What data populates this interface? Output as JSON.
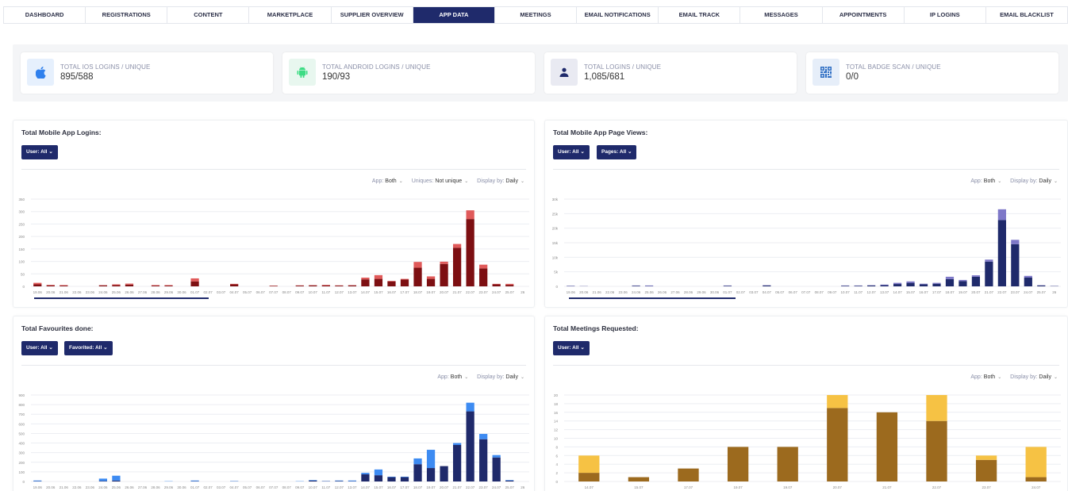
{
  "nav": [
    {
      "label": "DASHBOARD",
      "active": false
    },
    {
      "label": "REGISTRATIONS",
      "active": false
    },
    {
      "label": "CONTENT",
      "active": false
    },
    {
      "label": "MARKETPLACE",
      "active": false
    },
    {
      "label": "SUPPLIER OVERVIEW",
      "active": false
    },
    {
      "label": "APP DATA",
      "active": true
    },
    {
      "label": "MEETINGS",
      "active": false
    },
    {
      "label": "EMAIL NOTIFICATIONS",
      "active": false
    },
    {
      "label": "EMAIL TRACK",
      "active": false
    },
    {
      "label": "MESSAGES",
      "active": false
    },
    {
      "label": "APPOINTMENTS",
      "active": false
    },
    {
      "label": "IP LOGINS",
      "active": false
    },
    {
      "label": "EMAIL BLACKLIST",
      "active": false
    }
  ],
  "stats": [
    {
      "label": "TOTAL IOS LOGINS / UNIQUE",
      "value": "895/588",
      "icon": "apple-icon",
      "color": "#2f80ed",
      "bg": "#e6f0fd"
    },
    {
      "label": "TOTAL ANDROID LOGINS / UNIQUE",
      "value": "190/93",
      "icon": "android-icon",
      "color": "#3ddc84",
      "bg": "#e8f7ef"
    },
    {
      "label": "TOTAL LOGINS / UNIQUE",
      "value": "1,085/681",
      "icon": "user-icon",
      "color": "#1f2a6b",
      "bg": "#e9eaf2"
    },
    {
      "label": "TOTAL BADGE SCAN / UNIQUE",
      "value": "0/0",
      "icon": "qr-code-icon",
      "color": "#2f6fc4",
      "bg": "#e6eef9"
    }
  ],
  "panels": {
    "logins": {
      "title": "Total Mobile App Logins:",
      "user_btn": "User: All",
      "app_label": "App:",
      "app_value": "Both",
      "uniques_label": "Uniques:",
      "uniques_value": "Not unique",
      "display_label": "Display by:",
      "display_value": "Daily"
    },
    "pageviews": {
      "title": "Total Mobile App Page Views:",
      "user_btn": "User: All",
      "pages_btn": "Pages: All",
      "app_label": "App:",
      "app_value": "Both",
      "display_label": "Display by:",
      "display_value": "Daily"
    },
    "favourites": {
      "title": "Total Favourites done:",
      "user_btn": "User: All",
      "favorited_btn": "Favorited: All",
      "app_label": "App:",
      "app_value": "Both",
      "display_label": "Display by:",
      "display_value": "Daily"
    },
    "meetings": {
      "title": "Total Meetings Requested:",
      "user_btn": "User: All",
      "app_label": "App:",
      "app_value": "Both",
      "display_label": "Display by:",
      "display_value": "Daily"
    }
  },
  "chart_data": [
    {
      "id": "logins",
      "type": "bar",
      "stacked": true,
      "ylim": [
        0,
        350
      ],
      "yticks": [
        0,
        50,
        100,
        150,
        200,
        250,
        300,
        350
      ],
      "categories": [
        "19.06",
        "20.06",
        "21.06",
        "22.06",
        "23.06",
        "24.06",
        "25.06",
        "26.06",
        "27.06",
        "28.06",
        "29.06",
        "30.06",
        "01.07",
        "02.07",
        "03.07",
        "04.07",
        "05.07",
        "06.07",
        "07.07",
        "08.07",
        "09.07",
        "10.07",
        "11.07",
        "12.07",
        "13.07",
        "14.07",
        "15.07",
        "16.07",
        "17.07",
        "18.07",
        "19.07",
        "20.07",
        "21.07",
        "22.07",
        "23.07",
        "24.07",
        "25.07",
        "26"
      ],
      "series": [
        {
          "values": [
            8,
            4,
            3,
            0,
            0,
            4,
            5,
            7,
            0,
            3,
            3,
            0,
            20,
            0,
            0,
            8,
            0,
            0,
            2,
            0,
            3,
            4,
            4,
            3,
            4,
            28,
            30,
            20,
            27,
            75,
            30,
            90,
            155,
            270,
            72,
            8,
            6,
            0
          ],
          "color": "#7d0f12"
        },
        {
          "values": [
            6,
            2,
            2,
            0,
            0,
            1,
            3,
            4,
            0,
            2,
            2,
            0,
            12,
            0,
            0,
            2,
            0,
            0,
            1,
            0,
            1,
            1,
            2,
            1,
            1,
            7,
            15,
            2,
            3,
            23,
            10,
            9,
            15,
            35,
            15,
            2,
            4,
            0
          ],
          "color": "#e05a5a"
        }
      ],
      "grid": true,
      "legend": "none"
    },
    {
      "id": "pageviews",
      "type": "bar",
      "stacked": true,
      "ylim": [
        0,
        30000
      ],
      "yticks": [
        "0",
        "5k",
        "10k",
        "15k",
        "20k",
        "25k",
        "30k"
      ],
      "categories": [
        "19.06",
        "20.06",
        "21.06",
        "22.06",
        "23.06",
        "24.06",
        "25.06",
        "26.06",
        "27.06",
        "28.06",
        "29.06",
        "30.06",
        "01.07",
        "02.07",
        "03.07",
        "04.07",
        "05.07",
        "06.07",
        "07.07",
        "08.07",
        "09.07",
        "10.07",
        "11.07",
        "12.07",
        "13.07",
        "14.07",
        "15.07",
        "16.07",
        "17.07",
        "18.07",
        "19.07",
        "20.07",
        "21.07",
        "22.07",
        "23.07",
        "24.07",
        "25.07",
        "26"
      ],
      "series": [
        {
          "values": [
            100,
            50,
            0,
            0,
            0,
            200,
            100,
            0,
            0,
            0,
            0,
            0,
            200,
            0,
            0,
            300,
            0,
            0,
            0,
            0,
            0,
            200,
            200,
            300,
            400,
            800,
            1200,
            700,
            900,
            2500,
            1800,
            3300,
            8500,
            22800,
            14500,
            3000,
            300,
            100
          ],
          "color": "#1f2a6b"
        },
        {
          "values": [
            100,
            50,
            0,
            0,
            0,
            100,
            200,
            0,
            0,
            0,
            0,
            0,
            100,
            0,
            0,
            100,
            0,
            0,
            0,
            0,
            0,
            100,
            100,
            100,
            200,
            400,
            500,
            200,
            300,
            800,
            400,
            500,
            700,
            3700,
            1500,
            600,
            100,
            50
          ],
          "color": "#7e78c8"
        }
      ],
      "grid": true,
      "legend": "none"
    },
    {
      "id": "favourites",
      "type": "bar",
      "stacked": true,
      "ylim": [
        0,
        900
      ],
      "yticks": [
        0,
        100,
        200,
        300,
        400,
        500,
        600,
        700,
        800,
        900
      ],
      "categories": [
        "19.06",
        "20.06",
        "21.06",
        "22.06",
        "23.06",
        "24.06",
        "25.06",
        "26.06",
        "27.06",
        "28.06",
        "29.06",
        "30.06",
        "01.07",
        "02.07",
        "03.07",
        "04.07",
        "05.07",
        "06.07",
        "07.07",
        "08.07",
        "09.07",
        "10.07",
        "11.07",
        "12.07",
        "13.07",
        "14.07",
        "15.07",
        "16.07",
        "17.07",
        "18.07",
        "19.07",
        "20.07",
        "21.07",
        "22.07",
        "23.07",
        "24.07",
        "25.07",
        "26"
      ],
      "series": [
        {
          "values": [
            3,
            0,
            0,
            0,
            0,
            5,
            10,
            0,
            0,
            0,
            0,
            0,
            3,
            0,
            0,
            2,
            0,
            0,
            0,
            0,
            0,
            10,
            3,
            5,
            3,
            75,
            65,
            45,
            45,
            180,
            140,
            160,
            380,
            730,
            440,
            250,
            10,
            0
          ],
          "color": "#1f2a6b"
        },
        {
          "values": [
            7,
            0,
            0,
            0,
            0,
            25,
            50,
            0,
            0,
            0,
            3,
            0,
            7,
            0,
            0,
            3,
            0,
            0,
            0,
            0,
            3,
            5,
            2,
            5,
            7,
            15,
            60,
            5,
            5,
            60,
            190,
            0,
            20,
            90,
            55,
            25,
            5,
            0
          ],
          "color": "#3d8bf2"
        }
      ],
      "grid": true,
      "legend": "none"
    },
    {
      "id": "meetings",
      "type": "bar",
      "stacked": true,
      "ylim": [
        0,
        20
      ],
      "yticks": [
        0,
        2,
        4,
        6,
        8,
        10,
        12,
        14,
        16,
        18,
        20
      ],
      "categories": [
        "14.07",
        "15.07",
        "17.07",
        "19.07",
        "19.07",
        "20.07",
        "21.07",
        "22.07",
        "23.07",
        "24.07"
      ],
      "series": [
        {
          "values": [
            2,
            1,
            3,
            8,
            8,
            17,
            16,
            14,
            5,
            1
          ],
          "color": "#9c6a1e"
        },
        {
          "values": [
            4,
            0,
            0,
            0,
            0,
            3,
            0,
            6,
            1,
            7
          ],
          "color": "#f6c244"
        }
      ],
      "grid": true,
      "legend": "none"
    }
  ]
}
